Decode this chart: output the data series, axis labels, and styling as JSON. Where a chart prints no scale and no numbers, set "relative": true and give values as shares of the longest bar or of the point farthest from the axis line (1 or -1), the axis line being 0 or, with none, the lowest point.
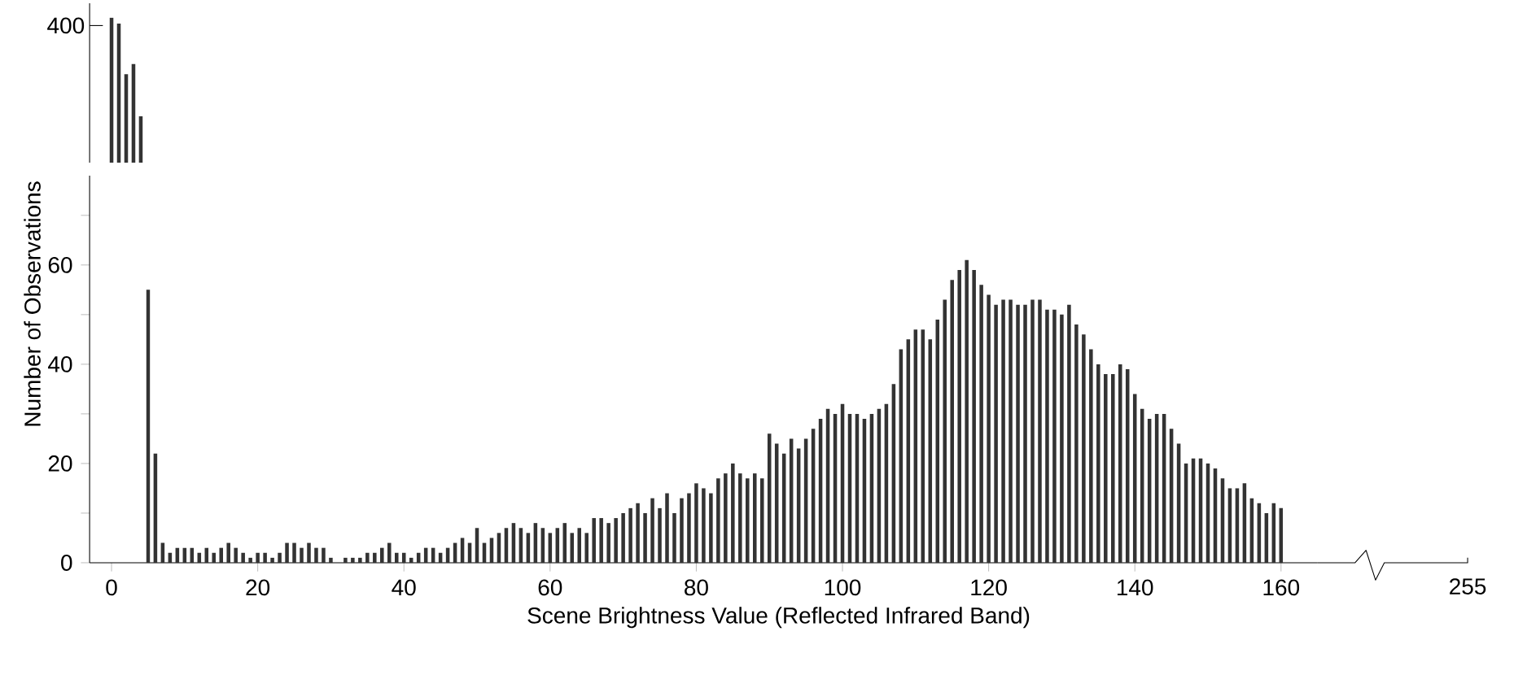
{
  "chart_data": [
    {
      "type": "bar",
      "relative": true,
      "categories": [
        null,
        null,
        null,
        null,
        null
      ],
      "values": [
        1,
        0.96,
        0.61,
        0.68,
        0.32
      ],
      "color": "#333333",
      "tick_labels": false,
      "annotations": [
        "400"
      ]
    },
    {
      "type": "bar",
      "xlabel": "Scene Brightness Value (Reflected Infrared Band)",
      "ylabel": "Number of Observations",
      "color": "#333333",
      "xlim": [
        -3,
        165
      ],
      "ylim": [
        0,
        78
      ],
      "xticks": [
        0,
        20,
        40,
        60,
        80,
        100,
        120,
        140,
        160
      ],
      "yticks": [
        0,
        {
          "value": 10,
          "label": null
        },
        20,
        {
          "value": 30,
          "label": null
        },
        40,
        {
          "value": 50,
          "label": null
        },
        60,
        {
          "value": 70,
          "label": null
        }
      ],
      "annotations": [
        "255"
      ],
      "x": [
        5,
        6,
        7,
        8,
        9,
        10,
        11,
        12,
        13,
        14,
        15,
        16,
        17,
        18,
        19,
        20,
        21,
        22,
        23,
        24,
        25,
        26,
        27,
        28,
        29,
        30,
        31,
        32,
        33,
        34,
        35,
        36,
        37,
        38,
        39,
        40,
        41,
        42,
        43,
        44,
        45,
        46,
        47,
        48,
        49,
        50,
        51,
        52,
        53,
        54,
        55,
        56,
        57,
        58,
        59,
        60,
        61,
        62,
        63,
        64,
        65,
        66,
        67,
        68,
        69,
        70,
        71,
        72,
        73,
        74,
        75,
        76,
        77,
        78,
        79,
        80,
        81,
        82,
        83,
        84,
        85,
        86,
        87,
        88,
        89,
        90,
        91,
        92,
        93,
        94,
        95,
        96,
        97,
        98,
        99,
        100,
        101,
        102,
        103,
        104,
        105,
        106,
        107,
        108,
        109,
        110,
        111,
        112,
        113,
        114,
        115,
        116,
        117,
        118,
        119,
        120,
        121,
        122,
        123,
        124,
        125,
        126,
        127,
        128,
        129,
        130,
        131,
        132,
        133,
        134,
        135,
        136,
        137,
        138,
        139,
        140,
        141,
        142,
        143,
        144,
        145,
        146,
        147,
        148,
        149,
        150,
        151,
        152,
        153,
        154,
        155,
        156,
        157,
        158,
        159,
        160
      ],
      "values": [
        55,
        22,
        4,
        2,
        3,
        3,
        3,
        2,
        3,
        2,
        3,
        4,
        3,
        2,
        1,
        2,
        2,
        1,
        2,
        4,
        4,
        3,
        4,
        3,
        3,
        1,
        0,
        1,
        1,
        1,
        2,
        2,
        3,
        4,
        2,
        2,
        1,
        2,
        3,
        3,
        2,
        3,
        4,
        5,
        4,
        7,
        4,
        5,
        6,
        7,
        8,
        7,
        6,
        8,
        7,
        6,
        7,
        8,
        6,
        7,
        6,
        9,
        9,
        8,
        9,
        10,
        11,
        12,
        10,
        13,
        11,
        14,
        10,
        13,
        14,
        16,
        15,
        14,
        17,
        18,
        20,
        18,
        17,
        18,
        17,
        26,
        24,
        22,
        25,
        23,
        25,
        27,
        29,
        31,
        30,
        32,
        30,
        30,
        29,
        30,
        31,
        32,
        36,
        43,
        45,
        47,
        47,
        45,
        49,
        53,
        57,
        59,
        61,
        59,
        56,
        54,
        52,
        53,
        53,
        52,
        52,
        53,
        53,
        51,
        51,
        50,
        52,
        48,
        46,
        43,
        40,
        38,
        38,
        40,
        39,
        34,
        31,
        29,
        30,
        30,
        27,
        24,
        20,
        21,
        21,
        20,
        19,
        17,
        15,
        15,
        16,
        13,
        12,
        10,
        12,
        11
      ]
    }
  ]
}
